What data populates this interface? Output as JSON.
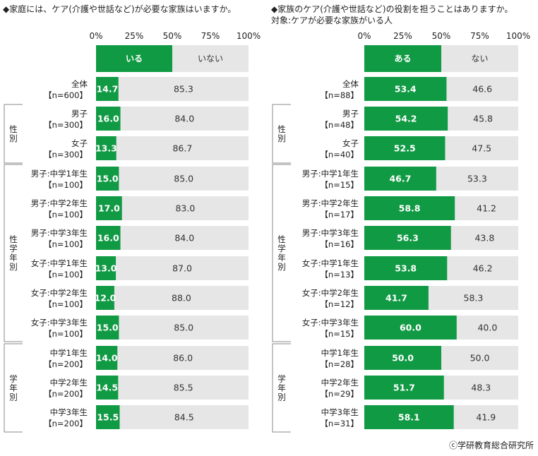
{
  "chart_data": [
    {
      "type": "bar",
      "stacked": true,
      "orientation": "horizontal",
      "title": "◆家庭には、ケア(介護や世話など)が必要な家族はいますか。",
      "subtitle": "",
      "xlim": [
        0,
        100
      ],
      "ticks": [
        "0%",
        "25%",
        "50%",
        "75%",
        "100%"
      ],
      "legend": [
        "いる",
        "いない"
      ],
      "groups": [
        {
          "label": "",
          "rows": [
            0
          ]
        },
        {
          "label": "性別",
          "rows": [
            1,
            2
          ]
        },
        {
          "label": "性学年別",
          "rows": [
            3,
            4,
            5,
            6,
            7,
            8
          ]
        },
        {
          "label": "学年別",
          "rows": [
            9,
            10,
            11
          ]
        }
      ],
      "rows": [
        {
          "label": "全体",
          "n": "【n=600】",
          "values": [
            14.7,
            85.3
          ],
          "labels": [
            "14.7",
            "85.3"
          ]
        },
        {
          "label": "男子",
          "n": "【n=300】",
          "values": [
            16.0,
            84.0
          ],
          "labels": [
            "16.0",
            "84.0"
          ]
        },
        {
          "label": "女子",
          "n": "【n=300】",
          "values": [
            13.3,
            86.7
          ],
          "labels": [
            "13.3",
            "86.7"
          ]
        },
        {
          "label": "男子:中学1年生",
          "n": "【n=100】",
          "values": [
            15.0,
            85.0
          ],
          "labels": [
            "15.0",
            "85.0"
          ]
        },
        {
          "label": "男子:中学2年生",
          "n": "【n=100】",
          "values": [
            17.0,
            83.0
          ],
          "labels": [
            "17.0",
            "83.0"
          ]
        },
        {
          "label": "男子:中学3年生",
          "n": "【n=100】",
          "values": [
            16.0,
            84.0
          ],
          "labels": [
            "16.0",
            "84.0"
          ]
        },
        {
          "label": "女子:中学1年生",
          "n": "【n=100】",
          "values": [
            13.0,
            87.0
          ],
          "labels": [
            "13.0",
            "87.0"
          ]
        },
        {
          "label": "女子:中学2年生",
          "n": "【n=100】",
          "values": [
            12.0,
            88.0
          ],
          "labels": [
            "12.0",
            "88.0"
          ]
        },
        {
          "label": "女子:中学3年生",
          "n": "【n=100】",
          "values": [
            15.0,
            85.0
          ],
          "labels": [
            "15.0",
            "85.0"
          ]
        },
        {
          "label": "中学1年生",
          "n": "【n=200】",
          "values": [
            14.0,
            86.0
          ],
          "labels": [
            "14.0",
            "86.0"
          ]
        },
        {
          "label": "中学2年生",
          "n": "【n=200】",
          "values": [
            14.5,
            85.5
          ],
          "labels": [
            "14.5",
            "85.5"
          ]
        },
        {
          "label": "中学3年生",
          "n": "【n=200】",
          "values": [
            15.5,
            84.5
          ],
          "labels": [
            "15.5",
            "84.5"
          ]
        }
      ]
    },
    {
      "type": "bar",
      "stacked": true,
      "orientation": "horizontal",
      "title": "◆家族のケア(介護や世話など)の役割を担うことはありますか。",
      "subtitle": "対象:ケアが必要な家族がいる人",
      "xlim": [
        0,
        100
      ],
      "ticks": [
        "0%",
        "25%",
        "50%",
        "75%",
        "100%"
      ],
      "legend": [
        "ある",
        "ない"
      ],
      "groups": [
        {
          "label": "",
          "rows": [
            0
          ]
        },
        {
          "label": "性別",
          "rows": [
            1,
            2
          ]
        },
        {
          "label": "性学年別",
          "rows": [
            3,
            4,
            5,
            6,
            7,
            8
          ]
        },
        {
          "label": "学年別",
          "rows": [
            9,
            10,
            11
          ]
        }
      ],
      "rows": [
        {
          "label": "全体",
          "n": "【n=88】",
          "values": [
            53.4,
            46.6
          ],
          "labels": [
            "53.4",
            "46.6"
          ]
        },
        {
          "label": "男子",
          "n": "【n=48】",
          "values": [
            54.2,
            45.8
          ],
          "labels": [
            "54.2",
            "45.8"
          ]
        },
        {
          "label": "女子",
          "n": "【n=40】",
          "values": [
            52.5,
            47.5
          ],
          "labels": [
            "52.5",
            "47.5"
          ]
        },
        {
          "label": "男子:中学1年生",
          "n": "【n=15】",
          "values": [
            46.7,
            53.3
          ],
          "labels": [
            "46.7",
            "53.3"
          ]
        },
        {
          "label": "男子:中学2年生",
          "n": "【n=17】",
          "values": [
            58.8,
            41.2
          ],
          "labels": [
            "58.8",
            "41.2"
          ]
        },
        {
          "label": "男子:中学3年生",
          "n": "【n=16】",
          "values": [
            56.3,
            43.8
          ],
          "labels": [
            "56.3",
            "43.8"
          ]
        },
        {
          "label": "女子:中学1年生",
          "n": "【n=13】",
          "values": [
            53.8,
            46.2
          ],
          "labels": [
            "53.8",
            "46.2"
          ]
        },
        {
          "label": "女子:中学2年生",
          "n": "【n=12】",
          "values": [
            41.7,
            58.3
          ],
          "labels": [
            "41.7",
            "58.3"
          ]
        },
        {
          "label": "女子:中学3年生",
          "n": "【n=15】",
          "values": [
            60.0,
            40.0
          ],
          "labels": [
            "60.0",
            "40.0"
          ]
        },
        {
          "label": "中学1年生",
          "n": "【n=28】",
          "values": [
            50.0,
            50.0
          ],
          "labels": [
            "50.0",
            "50.0"
          ]
        },
        {
          "label": "中学2年生",
          "n": "【n=29】",
          "values": [
            51.7,
            48.3
          ],
          "labels": [
            "51.7",
            "48.3"
          ]
        },
        {
          "label": "中学3年生",
          "n": "【n=31】",
          "values": [
            58.1,
            41.9
          ],
          "labels": [
            "58.1",
            "41.9"
          ]
        }
      ]
    }
  ],
  "colors": {
    "primary": "#119a44",
    "secondary": "#e6e6e6",
    "label_on_primary": "#ffffff",
    "label_on_secondary": "#333333"
  },
  "footer": {
    "copyright": "ⓒ学研教育総合研究所"
  }
}
